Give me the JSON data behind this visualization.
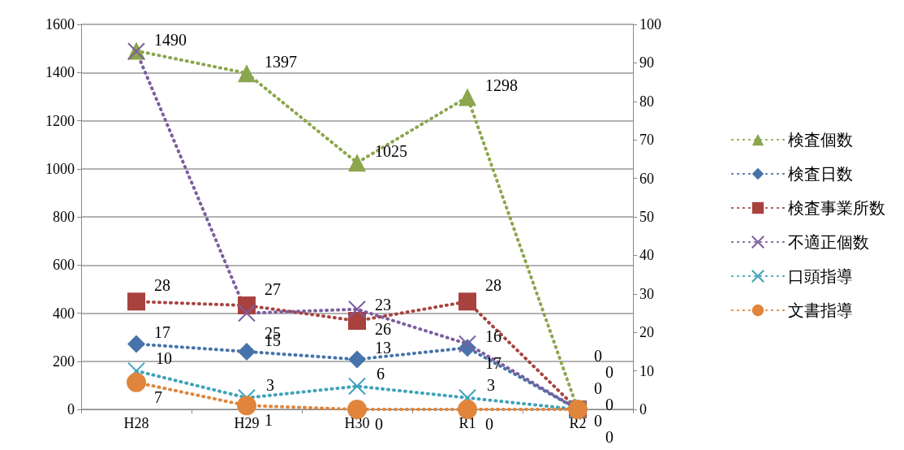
{
  "chart_data": {
    "type": "line",
    "categories": [
      "H28",
      "H29",
      "H30",
      "R1",
      "R2"
    ],
    "series": [
      {
        "name": "検査個数",
        "color": "#8ba64c",
        "marker": "triangle",
        "values": [
          1490,
          1397,
          1025,
          1298,
          0
        ],
        "value_labels": [
          "1490",
          "1397",
          "1025",
          "1298",
          "0"
        ]
      },
      {
        "name": "検査日数",
        "color": "#4674aa",
        "marker": "diamond",
        "axis": "y2",
        "values": [
          17,
          15,
          13,
          16,
          0
        ],
        "value_labels": [
          "17",
          "15",
          "13",
          "16",
          "0"
        ]
      },
      {
        "name": "検査事業所数",
        "color": "#a8423f",
        "marker": "square",
        "axis": "y2",
        "values": [
          28,
          27,
          23,
          28,
          0
        ],
        "value_labels": [
          "28",
          "27",
          "23",
          "28",
          "0"
        ]
      },
      {
        "name": "不適正個数",
        "color": "#7c5e9f",
        "marker": "cross",
        "axis": "y2",
        "values": [
          93,
          25,
          26,
          17,
          0
        ],
        "value_labels": [
          null,
          "25",
          "26",
          "17",
          "0"
        ]
      },
      {
        "name": "口頭指導",
        "color": "#3ea2b8",
        "marker": "cross",
        "axis": "y2",
        "values": [
          10,
          3,
          6,
          3,
          0
        ],
        "value_labels": [
          "10",
          "3",
          "6",
          "3",
          "0"
        ]
      },
      {
        "name": "文書指導",
        "color": "#e0853b",
        "marker": "circle",
        "axis": "y2",
        "values": [
          7,
          1,
          0,
          0,
          0
        ],
        "value_labels": [
          "7",
          "1",
          "0",
          "0",
          "0"
        ]
      }
    ],
    "ylim": [
      0,
      1600
    ],
    "yticks": [
      0,
      200,
      400,
      600,
      800,
      1000,
      1200,
      1400,
      1600
    ],
    "y2lim": [
      0,
      100
    ],
    "y2ticks": [
      0,
      10,
      20,
      30,
      40,
      50,
      60,
      70,
      80,
      90,
      100
    ],
    "grid": "y",
    "legend": "right",
    "line_style": "dotted"
  }
}
